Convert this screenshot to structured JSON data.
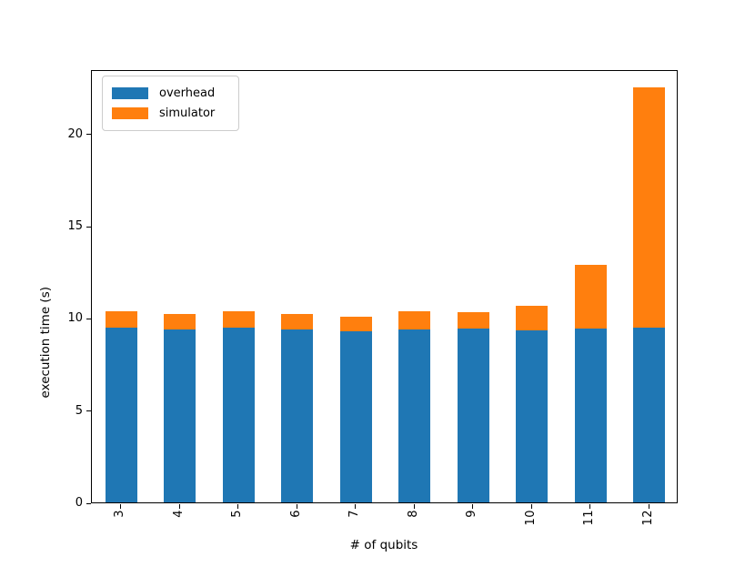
{
  "chart_data": {
    "type": "bar",
    "stacked": true,
    "title": "",
    "xlabel": "# of qubits",
    "ylabel": "execution time (s)",
    "categories": [
      "3",
      "4",
      "5",
      "6",
      "7",
      "8",
      "9",
      "10",
      "11",
      "12"
    ],
    "series": [
      {
        "name": "overhead",
        "color": "#1f77b4",
        "values": [
          9.5,
          9.4,
          9.5,
          9.4,
          9.3,
          9.4,
          9.45,
          9.35,
          9.45,
          9.5
        ]
      },
      {
        "name": "simulator",
        "color": "#ff7f0e",
        "values": [
          0.85,
          0.8,
          0.85,
          0.8,
          0.75,
          0.95,
          0.85,
          1.3,
          3.45,
          13.0
        ]
      }
    ],
    "totals": [
      10.35,
      10.2,
      10.35,
      10.2,
      10.05,
      10.35,
      10.3,
      10.65,
      12.9,
      22.5
    ],
    "yticks": [
      0,
      5,
      10,
      15,
      20
    ],
    "ylim": [
      0,
      23.5
    ],
    "xtick_rotation_degrees": 90,
    "grid": false,
    "legend_position": "upper left",
    "background_color": "#ffffff",
    "spine_color": "#000000"
  },
  "legend": {
    "items": [
      {
        "label": "overhead",
        "color": "#1f77b4"
      },
      {
        "label": "simulator",
        "color": "#ff7f0e"
      }
    ]
  }
}
